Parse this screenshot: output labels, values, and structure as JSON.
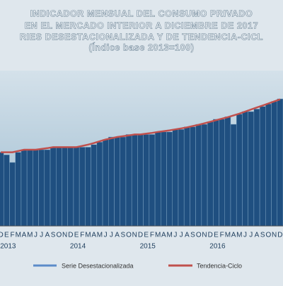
{
  "chart_data": {
    "type": "bar",
    "title": [
      "INDICADOR MENSUAL  DEL CONSUMO PRIVADO",
      "EN EL MERCADO  INTERIOR A DICIEMBRE DE 2017",
      "RIES DESESTACIONALIZADA  Y DE TENDENCIA-CICL",
      "(Índice base  2013=100)"
    ],
    "categories": [
      "D",
      "E",
      "F",
      "M",
      "A",
      "M",
      "J",
      "J",
      "A",
      "S",
      "O",
      "N",
      "D",
      "E",
      "F",
      "M",
      "A",
      "M",
      "J",
      "J",
      "A",
      "S",
      "O",
      "N",
      "D",
      "E",
      "F",
      "M",
      "A",
      "M",
      "J",
      "J",
      "A",
      "S",
      "O",
      "N",
      "D",
      "E",
      "F",
      "M",
      "A",
      "M",
      "J",
      "J",
      "A",
      "S",
      "O",
      "N",
      "D"
    ],
    "years": [
      "2013",
      "2014",
      "2015",
      "2016"
    ],
    "series": [
      {
        "name": "Serie Desestacionalizada",
        "color": "#1f4f80",
        "values": [
          99,
          98,
          95,
          99,
          100,
          100,
          100,
          100,
          100,
          101,
          101,
          101,
          101,
          101,
          101,
          101,
          102,
          103,
          104,
          105,
          105,
          105,
          106,
          106,
          106,
          106,
          106,
          107,
          107,
          107,
          108,
          108,
          109,
          109,
          110,
          110,
          111,
          112,
          112,
          113,
          110,
          114,
          115,
          115,
          116,
          117,
          118,
          119,
          120
        ]
      },
      {
        "name": "Tendencia-Ciclo",
        "color": "#c0504d",
        "values": [
          99,
          99,
          99,
          99.5,
          100,
          100,
          100,
          100.3,
          100.6,
          101,
          101,
          101,
          101,
          101,
          101.5,
          102,
          102.6,
          103.3,
          104,
          104.5,
          105,
          105.3,
          105.6,
          106,
          106,
          106.3,
          106.6,
          107,
          107.3,
          107.6,
          108,
          108.4,
          108.8,
          109.3,
          109.8,
          110.4,
          111,
          111.6,
          112.2,
          112.8,
          113.5,
          114.2,
          115,
          115.8,
          116.6,
          117.4,
          118.2,
          119,
          119.8
        ]
      }
    ],
    "ylim": [
      70,
      130
    ]
  }
}
